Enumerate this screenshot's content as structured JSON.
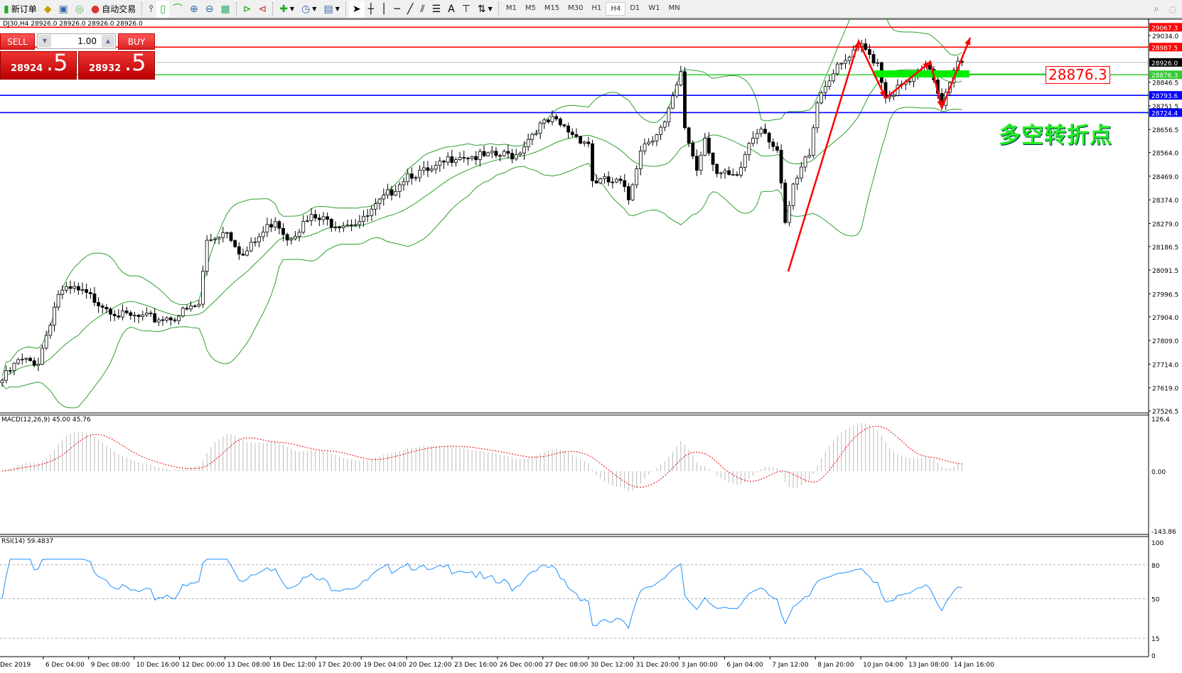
{
  "toolbar": {
    "new_order": "新订单",
    "auto_trading": "自动交易",
    "timeframes": [
      "M1",
      "M5",
      "M15",
      "M30",
      "H1",
      "H4",
      "D1",
      "W1",
      "MN"
    ],
    "active_timeframe": "H4"
  },
  "chart": {
    "header": "DJ30,H4  28926.0 28926.0 28926.0 28926.0",
    "symbol": "DJ30",
    "timeframe": "H4",
    "close_path": [
      [
        0,
        27649
      ],
      [
        4,
        27724
      ],
      [
        9,
        27724
      ],
      [
        14,
        27998
      ],
      [
        18,
        28012
      ],
      [
        24,
        27967
      ],
      [
        30,
        27906
      ],
      [
        38,
        27895
      ],
      [
        43,
        27906
      ],
      [
        49,
        27952
      ],
      [
        51,
        28209
      ],
      [
        56,
        28254
      ],
      [
        60,
        28148
      ],
      [
        68,
        28300
      ],
      [
        71,
        28223
      ],
      [
        77,
        28300
      ],
      [
        83,
        28280
      ],
      [
        90,
        28290
      ],
      [
        94,
        28360
      ],
      [
        101,
        28480
      ],
      [
        107,
        28485
      ],
      [
        113,
        28557
      ],
      [
        120,
        28545
      ],
      [
        128,
        28557
      ],
      [
        133,
        28663
      ],
      [
        137,
        28691
      ],
      [
        143,
        28631
      ],
      [
        146,
        28603
      ],
      [
        147,
        28452
      ],
      [
        154,
        28440
      ],
      [
        156,
        28375
      ],
      [
        159,
        28585
      ],
      [
        165,
        28677
      ],
      [
        169,
        28874
      ],
      [
        170,
        28663
      ],
      [
        173,
        28497
      ],
      [
        175,
        28630
      ],
      [
        178,
        28480
      ],
      [
        183,
        28455
      ],
      [
        186,
        28603
      ],
      [
        189,
        28677
      ],
      [
        193,
        28571
      ],
      [
        195,
        28269
      ],
      [
        197,
        28420
      ],
      [
        201,
        28571
      ],
      [
        203,
        28777
      ],
      [
        206,
        28868
      ],
      [
        214,
        28988
      ],
      [
        218,
        28928
      ],
      [
        220,
        28791
      ],
      [
        225,
        28837
      ],
      [
        231,
        28908
      ],
      [
        234,
        28768
      ],
      [
        237,
        28908
      ],
      [
        239,
        28926
      ]
    ],
    "price_labels": [
      "29034.0",
      "28846.5",
      "28751.5",
      "28656.5",
      "28564.0",
      "28469.0",
      "28374.0",
      "28279.0",
      "28186.5",
      "28091.5",
      "27996.5",
      "27904.0",
      "27809.0",
      "27714.0",
      "27619.0",
      "27526.5"
    ],
    "level_lines": [
      {
        "price": "29067.3",
        "color": "#ff0000"
      },
      {
        "price": "28987.5",
        "color": "#ff0000"
      },
      {
        "price": "28926.0",
        "color": "#000000"
      },
      {
        "price": "28876.3",
        "color": "#33cc33"
      },
      {
        "price": "28793.6",
        "color": "#0000ff"
      },
      {
        "price": "28724.4",
        "color": "#0000ff"
      }
    ],
    "time_labels": [
      "Dec 2019",
      "6 Dec 04:00",
      "9 Dec 08:00",
      "10 Dec 16:00",
      "12 Dec 00:00",
      "13 Dec 08:00",
      "16 Dec 12:00",
      "17 Dec 20:00",
      "19 Dec 04:00",
      "20 Dec 12:00",
      "23 Dec 16:00",
      "26 Dec 00:00",
      "27 Dec 08:00",
      "30 Dec 12:00",
      "31 Dec 20:00",
      "3 Jan 00:00",
      "6 Jan 04:00",
      "7 Jan 12:00",
      "8 Jan 20:00",
      "10 Jan 04:00",
      "13 Jan 08:00",
      "14 Jan 16:00"
    ],
    "bollinger_color": "#2ea02e",
    "annotation_price": "28876.3",
    "annotation_text": "多空转折点"
  },
  "trade_panel": {
    "sell_label": "SELL",
    "buy_label": "BUY",
    "lot": "1.00",
    "sell_big": "28924",
    "sell_small": ".5",
    "buy_big": "28932",
    "buy_small": ".5"
  },
  "macd": {
    "label": "MACD(12,26,9) 45.00 45.76",
    "scale_max": "126.4",
    "scale_zero": "0.00",
    "scale_min": "-143.86"
  },
  "rsi": {
    "label": "RSI(14) 59.4837",
    "levels": [
      "100",
      "80",
      "50",
      "15",
      "0"
    ]
  }
}
